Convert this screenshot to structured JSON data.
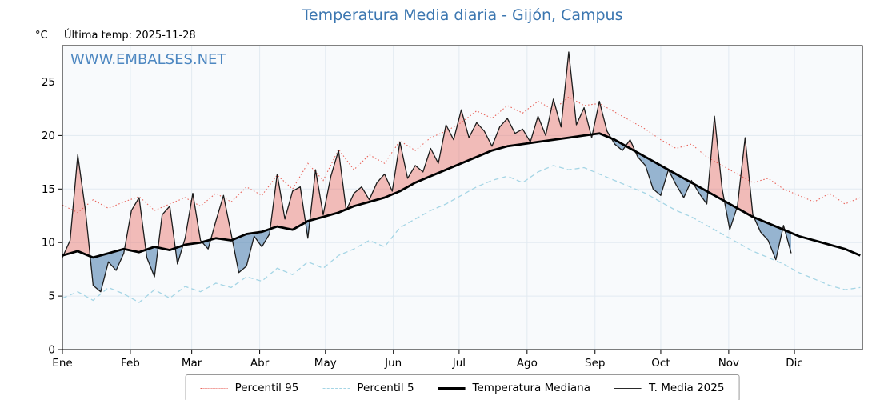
{
  "header": {
    "title": "Temperatura Media diaria - Gijón, Campus",
    "unit_label": "°C",
    "last_temp_label": "Última temp: 2025-11-28",
    "watermark": "WWW.EMBALSES.NET"
  },
  "colors": {
    "title": "#3b76b0",
    "watermark": "#3f7ebc",
    "p95": "#e8635a",
    "p5": "#a5d5e5",
    "median": "#000000",
    "t2025": "#1c1c1c",
    "fill_above": "rgba(232,99,90,0.42)",
    "fill_below": "rgba(80,130,175,0.58)",
    "plot_bg": "#f8fafc",
    "grid": "#e2eaf1"
  },
  "chart_data": {
    "type": "line",
    "title": "Temperatura Media diaria - Gijón, Campus",
    "xlabel": "",
    "ylabel": "°C",
    "ylim": [
      0,
      28.4
    ],
    "yticks": [
      0,
      5,
      10,
      15,
      20,
      25
    ],
    "categories": [
      "Ene",
      "Feb",
      "Mar",
      "Abr",
      "May",
      "Jun",
      "Jul",
      "Ago",
      "Sep",
      "Oct",
      "Nov",
      "Dic"
    ],
    "month_start_days": [
      0,
      31,
      59,
      90,
      120,
      151,
      181,
      212,
      243,
      273,
      304,
      334
    ],
    "x_total_days": 365,
    "last_data_day": 332.5,
    "legend": [
      "Percentil 95",
      "Percentil 5",
      "Temperatura Mediana",
      "T. Media 2025"
    ],
    "legend_position": "bottom-center",
    "grid": true,
    "series": [
      {
        "name": "Percentil 95",
        "x0": 0,
        "dx": 7,
        "values": [
          13.5,
          12.8,
          14.0,
          13.2,
          13.8,
          14.3,
          13.0,
          13.6,
          14.2,
          13.4,
          14.6,
          13.8,
          15.2,
          14.4,
          16.3,
          15.0,
          17.4,
          15.8,
          18.7,
          16.8,
          18.2,
          17.4,
          19.5,
          18.6,
          19.8,
          20.4,
          21.2,
          22.3,
          21.6,
          22.8,
          22.1,
          23.2,
          22.4,
          23.6,
          22.8,
          23.0,
          22.2,
          21.4,
          20.6,
          19.6,
          18.8,
          19.2,
          18.0,
          17.2,
          16.4,
          15.6,
          16.0,
          15.0,
          14.4,
          13.8,
          14.6,
          13.6,
          14.2
        ]
      },
      {
        "name": "Percentil 5",
        "x0": 0,
        "dx": 7,
        "values": [
          4.8,
          5.4,
          4.6,
          5.8,
          5.2,
          4.4,
          5.6,
          4.8,
          5.9,
          5.4,
          6.2,
          5.8,
          6.8,
          6.4,
          7.6,
          7.0,
          8.2,
          7.6,
          8.8,
          9.4,
          10.2,
          9.6,
          11.4,
          12.2,
          13.0,
          13.6,
          14.4,
          15.2,
          15.8,
          16.2,
          15.6,
          16.6,
          17.2,
          16.8,
          17.0,
          16.4,
          15.8,
          15.2,
          14.6,
          13.8,
          13.0,
          12.4,
          11.6,
          10.8,
          10.0,
          9.2,
          8.6,
          8.0,
          7.2,
          6.6,
          6.0,
          5.6,
          5.8
        ]
      },
      {
        "name": "Temperatura Mediana",
        "x0": 0,
        "dx": 7,
        "values": [
          8.8,
          9.2,
          8.6,
          9.0,
          9.4,
          9.1,
          9.6,
          9.3,
          9.8,
          10.0,
          10.4,
          10.2,
          10.8,
          11.0,
          11.5,
          11.2,
          12.0,
          12.4,
          12.8,
          13.4,
          13.8,
          14.2,
          14.8,
          15.6,
          16.2,
          16.8,
          17.4,
          18.0,
          18.6,
          19.0,
          19.2,
          19.4,
          19.6,
          19.8,
          20.0,
          20.2,
          19.6,
          18.8,
          18.0,
          17.2,
          16.4,
          15.6,
          14.8,
          14.0,
          13.2,
          12.4,
          11.8,
          11.2,
          10.6,
          10.2,
          9.8,
          9.4,
          8.8
        ]
      },
      {
        "name": "T. Media 2025",
        "x0": 0,
        "dx": 3.5,
        "values": [
          8.6,
          10.2,
          18.2,
          13.0,
          6.0,
          5.4,
          8.2,
          7.4,
          9.0,
          13.0,
          14.2,
          8.6,
          6.8,
          12.6,
          13.4,
          8.0,
          10.4,
          14.6,
          10.2,
          9.4,
          12.0,
          14.4,
          10.8,
          7.2,
          7.8,
          10.6,
          9.6,
          10.8,
          16.4,
          12.2,
          14.8,
          15.2,
          10.4,
          16.8,
          12.6,
          16.2,
          18.6,
          13.0,
          14.6,
          15.2,
          14.0,
          15.6,
          16.4,
          14.8,
          19.4,
          16.0,
          17.2,
          16.6,
          18.8,
          17.4,
          21.0,
          19.6,
          22.4,
          19.8,
          21.2,
          20.4,
          19.0,
          20.8,
          21.6,
          20.2,
          20.6,
          19.4,
          21.8,
          20.0,
          23.4,
          20.8,
          27.8,
          21.0,
          22.6,
          19.8,
          23.2,
          20.4,
          19.2,
          18.6,
          19.6,
          18.0,
          17.2,
          15.0,
          14.4,
          16.8,
          15.4,
          14.2,
          15.8,
          14.6,
          13.6,
          21.8,
          15.0,
          11.2,
          13.4,
          19.8,
          12.6,
          11.0,
          10.2,
          8.4,
          11.6,
          9.0
        ]
      }
    ]
  }
}
